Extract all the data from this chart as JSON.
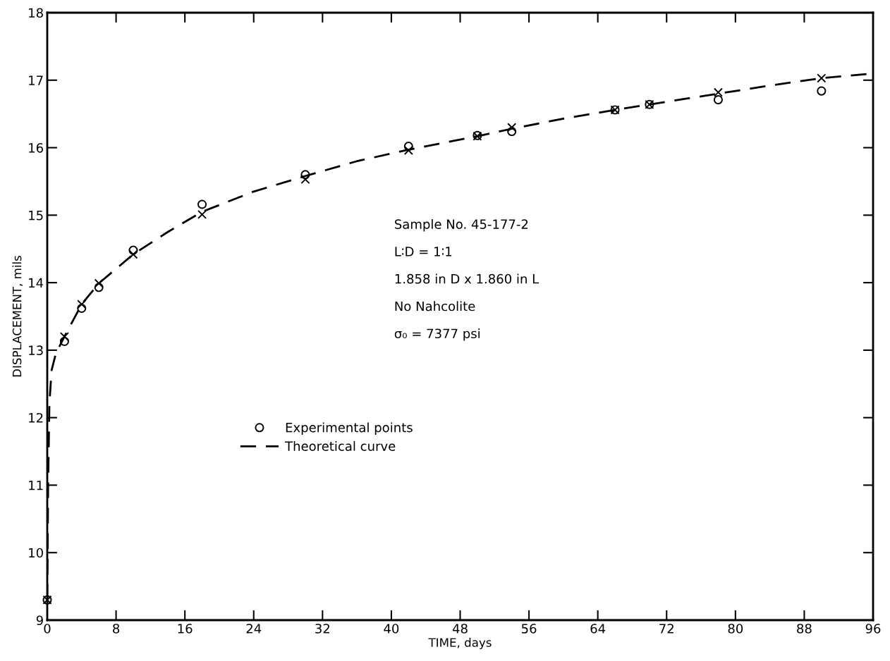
{
  "chart_data": {
    "type": "scatter",
    "xlabel": "TIME, days",
    "ylabel": "DISPLACEMENT, mils",
    "xlim": [
      0,
      96
    ],
    "xticks": [
      0,
      8,
      16,
      24,
      32,
      40,
      48,
      56,
      64,
      72,
      80,
      88,
      96
    ],
    "ylim": [
      9,
      18
    ],
    "yticks": [
      9,
      10,
      11,
      12,
      13,
      14,
      15,
      16,
      17,
      18
    ],
    "grid": false,
    "legend": "center left",
    "series": [
      {
        "name": "Experimental points",
        "marker": "circle",
        "color": "#000000",
        "x": [
          0,
          2,
          4,
          6,
          10,
          18,
          30,
          42,
          50,
          54,
          66,
          70,
          78,
          90
        ],
        "values": [
          9.3,
          13.13,
          13.62,
          13.93,
          14.48,
          15.16,
          15.6,
          16.02,
          16.18,
          16.24,
          16.56,
          16.64,
          16.71,
          16.84
        ]
      },
      {
        "marker": "cross",
        "color": "#000000",
        "x": [
          0,
          2,
          4,
          6,
          10,
          18,
          30,
          42,
          50,
          54,
          66,
          70,
          78,
          90
        ],
        "values": [
          9.3,
          13.2,
          13.68,
          13.99,
          14.42,
          15.01,
          15.53,
          15.96,
          16.17,
          16.3,
          16.56,
          16.64,
          16.82,
          17.03
        ]
      },
      {
        "name": "Theoretical curve",
        "type": "line",
        "line_style": "dashed",
        "marker": "none",
        "color": "#000000",
        "x": [
          0,
          0.1,
          0.25,
          0.5,
          1,
          2,
          4,
          6,
          10,
          14,
          18,
          24,
          30,
          36,
          42,
          50,
          54,
          60,
          66,
          70,
          78,
          84,
          90,
          96
        ],
        "values": [
          9.3,
          11.0,
          12.2,
          12.7,
          12.95,
          13.2,
          13.68,
          13.99,
          14.42,
          14.75,
          15.05,
          15.35,
          15.58,
          15.8,
          15.97,
          16.17,
          16.28,
          16.43,
          16.56,
          16.64,
          16.8,
          16.92,
          17.03,
          17.1
        ]
      }
    ],
    "annotations": [
      "Sample No. 45-177-2",
      "L∶D = 1∶1",
      "1.858 in D x 1.860 in L",
      "No Nahcolite",
      "σ₀ = 7377 psi"
    ]
  }
}
